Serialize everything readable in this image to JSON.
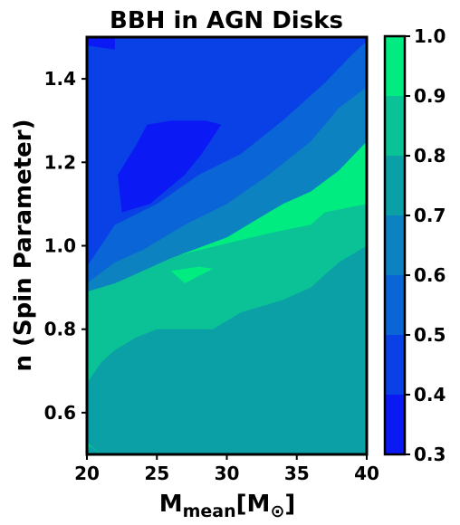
{
  "chart_data": {
    "type": "contour",
    "title": "BBH in AGN Disks",
    "xlabel": {
      "main": "M",
      "sub": "mean",
      "rest": "[M",
      "sun_sub": "⊙",
      "close": "]"
    },
    "ylabel": "n (Spin Parameter)",
    "xlim": [
      20,
      40
    ],
    "ylim": [
      0.5,
      1.5
    ],
    "x_ticks": [
      20,
      25,
      30,
      35,
      40
    ],
    "x_tick_labels": [
      "20",
      "25",
      "30",
      "35",
      "40"
    ],
    "y_ticks": [
      0.6,
      0.8,
      1.0,
      1.2,
      1.4
    ],
    "y_tick_labels": [
      "0.6",
      "0.8",
      "1.0",
      "1.2",
      "1.4"
    ],
    "colorbar": {
      "range": [
        0.3,
        1.0
      ],
      "ticks": [
        0.3,
        0.4,
        0.5,
        0.6,
        0.7,
        0.8,
        0.9,
        1.0
      ],
      "tick_labels": [
        "0.3",
        "0.4",
        "0.5",
        "0.6",
        "0.7",
        "0.8",
        "0.9",
        "1.0"
      ],
      "level_colors": [
        "#0b19f5",
        "#0a41e6",
        "#0a66d6",
        "#0d82c0",
        "#0ba0a6",
        "#0bc196",
        "#00ec80"
      ]
    },
    "contour_regions": [
      {
        "level": 0.65,
        "color": "#0ba0a6",
        "points": [
          [
            20,
            0.5
          ],
          [
            40,
            0.5
          ],
          [
            40,
            1.5
          ],
          [
            20,
            1.5
          ]
        ]
      },
      {
        "level": 0.75,
        "color": "#0bc196",
        "points": [
          [
            20,
            0.53
          ],
          [
            20,
            0.67
          ],
          [
            21,
            0.72
          ],
          [
            22,
            0.75
          ],
          [
            23.5,
            0.78
          ],
          [
            25,
            0.8
          ],
          [
            29,
            0.8
          ],
          [
            30,
            0.82
          ],
          [
            31,
            0.84
          ],
          [
            34,
            0.87
          ],
          [
            36,
            0.9
          ],
          [
            37,
            0.93
          ],
          [
            38,
            0.96
          ],
          [
            40,
            1.0
          ],
          [
            40,
            1.5
          ],
          [
            20,
            1.5
          ],
          [
            20,
            0.87
          ],
          [
            20,
            0.5
          ],
          [
            21,
            0.5
          ]
        ]
      },
      {
        "level": 0.65,
        "color": "#0ba0a6",
        "points": [
          [
            20,
            0.5
          ],
          [
            21,
            0.5
          ],
          [
            20.2,
            0.52
          ]
        ]
      },
      {
        "level": 0.85,
        "color": "#00ec80",
        "points": [
          [
            26,
            0.94
          ],
          [
            28,
            0.95
          ],
          [
            29,
            0.945
          ],
          [
            27,
            0.91
          ]
        ]
      },
      {
        "level": 0.85,
        "color": "#00ec80",
        "points": [
          [
            33,
            1.03
          ],
          [
            36,
            1.05
          ],
          [
            37,
            1.08
          ],
          [
            40,
            1.1
          ],
          [
            40,
            1.5
          ],
          [
            20,
            1.5
          ],
          [
            20,
            0.91
          ],
          [
            22,
            0.94
          ]
        ]
      },
      {
        "level": 0.55,
        "color": "#0d82c0",
        "points": [
          [
            20,
            0.89
          ],
          [
            22,
            0.91
          ],
          [
            24,
            0.94
          ],
          [
            26,
            0.97
          ],
          [
            30,
            1.02
          ],
          [
            32,
            1.06
          ],
          [
            34,
            1.1
          ],
          [
            36,
            1.13
          ],
          [
            38,
            1.18
          ],
          [
            40,
            1.25
          ],
          [
            40,
            1.5
          ],
          [
            20,
            1.5
          ]
        ]
      },
      {
        "level": 0.45,
        "color": "#0a66d6",
        "points": [
          [
            20,
            0.91
          ],
          [
            22,
            0.96
          ],
          [
            24,
            0.99
          ],
          [
            27,
            1.05
          ],
          [
            30,
            1.1
          ],
          [
            33,
            1.17
          ],
          [
            36,
            1.25
          ],
          [
            38,
            1.33
          ],
          [
            40,
            1.38
          ],
          [
            40,
            1.5
          ],
          [
            20,
            1.5
          ]
        ]
      },
      {
        "level": 0.35,
        "color": "#0a41e6",
        "points": [
          [
            20,
            0.95
          ],
          [
            21,
            1.0
          ],
          [
            22,
            1.05
          ],
          [
            25,
            1.1
          ],
          [
            28,
            1.17
          ],
          [
            31,
            1.22
          ],
          [
            34,
            1.3
          ],
          [
            37,
            1.39
          ],
          [
            39,
            1.46
          ],
          [
            40,
            1.49
          ],
          [
            40,
            1.5
          ],
          [
            20,
            1.5
          ]
        ]
      },
      {
        "level": 0.3,
        "color": "#0b19f5",
        "points": [
          [
            22.2,
            1.17
          ],
          [
            22.5,
            1.08
          ],
          [
            24.5,
            1.1
          ],
          [
            27,
            1.17
          ],
          [
            28.2,
            1.22
          ],
          [
            29.6,
            1.29
          ],
          [
            28.5,
            1.3
          ],
          [
            26,
            1.3
          ],
          [
            24.3,
            1.29
          ],
          [
            23.5,
            1.24
          ]
        ]
      },
      {
        "level": 0.3,
        "color": "#0b19f5",
        "points": [
          [
            20,
            1.48
          ],
          [
            22,
            1.47
          ],
          [
            22,
            1.5
          ],
          [
            20,
            1.5
          ]
        ]
      }
    ]
  }
}
